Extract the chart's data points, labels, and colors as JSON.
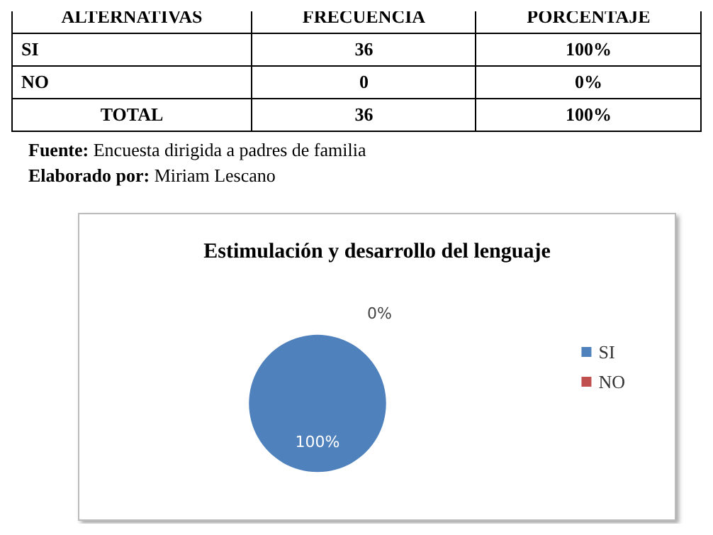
{
  "chart_data": {
    "type": "pie",
    "title": "Estimulación y desarrollo del lenguaje",
    "categories": [
      "SI",
      "NO"
    ],
    "values": [
      100,
      0
    ],
    "colors": [
      "#4f81bd",
      "#c0504d"
    ],
    "value_labels": [
      "100%",
      "0%"
    ],
    "legend": "right",
    "annotations": [
      "ALTERNATIVAS",
      "FRECUENCIA",
      "PORCENTAJE",
      "SI",
      "36",
      "100%",
      "NO",
      "0",
      "0%",
      "TOTAL",
      "36",
      "100%",
      "Fuente: Encuesta dirigida a padres de familia",
      "Elaborado por: Miriam Lescano"
    ]
  }
}
